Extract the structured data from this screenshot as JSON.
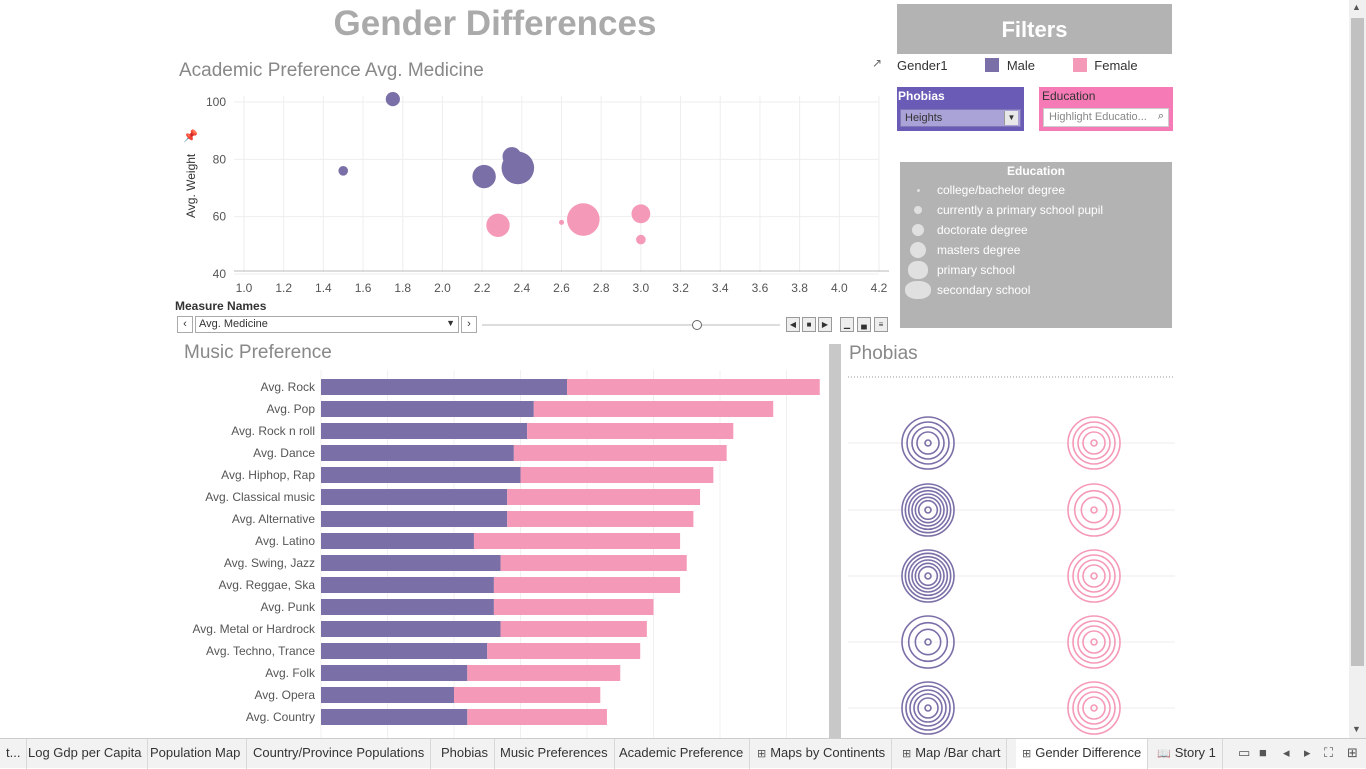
{
  "dashboard": {
    "title": "Gender Differences"
  },
  "academic": {
    "title": "Academic Preference Avg. Medicine",
    "y_axis_label": "Avg. Weight",
    "measure_names_label": "Measure Names",
    "measure_selected": "Avg. Medicine"
  },
  "filters": {
    "title": "Filters",
    "gender_label": "Gender1",
    "male_label": "Male",
    "female_label": "Female",
    "phobias_label": "Phobias",
    "phobias_value": "Heights",
    "education_label": "Education",
    "education_placeholder": "Highlight Educatio...",
    "education_legend_title": "Education",
    "education_levels": [
      "college/bachelor degree",
      "currently a primary school pupil",
      "doctorate degree",
      "masters degree",
      "primary school",
      "secondary school"
    ]
  },
  "music": {
    "title": "Music Preference"
  },
  "phobias": {
    "title": "Phobias"
  },
  "colors": {
    "male": "#7b6fa8",
    "female": "#f599b8",
    "phobia_filter": "#6a5bb7",
    "education_filter": "#f57ab5",
    "panel_gray": "#b3b3b3"
  },
  "chart_data": [
    {
      "type": "scatter",
      "title": "Academic Preference Avg. Medicine",
      "ylabel": "Avg. Weight",
      "xlim": [
        1.0,
        4.2
      ],
      "ylim": [
        40,
        100
      ],
      "x_ticks": [
        "1.0",
        "1.2",
        "1.4",
        "1.6",
        "1.8",
        "2.0",
        "2.2",
        "2.4",
        "2.6",
        "2.8",
        "3.0",
        "3.2",
        "3.4",
        "3.6",
        "3.8",
        "4.0",
        "4.2"
      ],
      "y_ticks": [
        "100",
        "80",
        "60",
        "40"
      ],
      "series": [
        {
          "name": "Male",
          "points": [
            {
              "x": 1.75,
              "y": 101,
              "size": 2
            },
            {
              "x": 1.5,
              "y": 76,
              "size": 1
            },
            {
              "x": 2.21,
              "y": 74,
              "size": 4
            },
            {
              "x": 2.35,
              "y": 81,
              "size": 3
            },
            {
              "x": 2.38,
              "y": 77,
              "size": 6
            }
          ]
        },
        {
          "name": "Female",
          "points": [
            {
              "x": 2.28,
              "y": 57,
              "size": 4
            },
            {
              "x": 2.6,
              "y": 58,
              "size": 0
            },
            {
              "x": 2.71,
              "y": 59,
              "size": 6
            },
            {
              "x": 3.0,
              "y": 61,
              "size": 3
            },
            {
              "x": 3.0,
              "y": 52,
              "size": 1
            }
          ]
        }
      ]
    },
    {
      "type": "bar",
      "title": "Music Preference",
      "orientation": "horizontal",
      "stacked": true,
      "categories": [
        "Avg. Rock",
        "Avg. Pop",
        "Avg. Rock n roll",
        "Avg. Dance",
        "Avg. Hiphop, Rap",
        "Avg. Classical music",
        "Avg. Alternative",
        "Avg. Latino",
        "Avg. Swing, Jazz",
        "Avg. Reggae, Ska",
        "Avg. Punk",
        "Avg. Metal or Hardrock",
        "Avg. Techno, Trance",
        "Avg. Folk",
        "Avg. Opera",
        "Avg. Country"
      ],
      "series": [
        {
          "name": "Male",
          "values": [
            3.7,
            3.2,
            3.1,
            2.9,
            3.0,
            2.8,
            2.8,
            2.3,
            2.7,
            2.6,
            2.6,
            2.7,
            2.5,
            2.2,
            2.0,
            2.2
          ]
        },
        {
          "name": "Female",
          "values": [
            3.8,
            3.6,
            3.1,
            3.2,
            2.9,
            2.9,
            2.8,
            3.1,
            2.8,
            2.8,
            2.4,
            2.2,
            2.3,
            2.3,
            2.2,
            2.1
          ]
        }
      ],
      "xlim": [
        0,
        8
      ]
    },
    {
      "type": "scatter",
      "title": "Phobias",
      "series": [
        {
          "name": "Male",
          "rings": [
            4,
            6,
            6,
            3,
            5
          ]
        },
        {
          "name": "Female",
          "rings": [
            4,
            3,
            4,
            4,
            4
          ]
        }
      ]
    }
  ],
  "tabs": [
    {
      "label": "t...",
      "icon": ""
    },
    {
      "label": "Log Gdp per Capita",
      "icon": ""
    },
    {
      "label": "Population Map",
      "icon": ""
    },
    {
      "label": "Country/Province Populations",
      "icon": ""
    },
    {
      "label": "Phobias",
      "icon": ""
    },
    {
      "label": "Music Preferences",
      "icon": ""
    },
    {
      "label": "Academic Preference",
      "icon": ""
    },
    {
      "label": "Maps by Continents",
      "icon": "dashboard-icon"
    },
    {
      "label": "Map /Bar chart",
      "icon": "dashboard-icon"
    },
    {
      "label": "Gender Difference",
      "icon": "dashboard-icon"
    },
    {
      "label": "Story 1",
      "icon": "story-icon"
    }
  ]
}
